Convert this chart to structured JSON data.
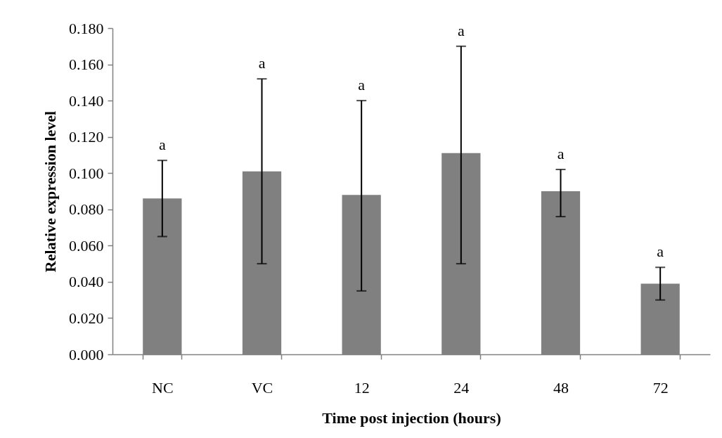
{
  "chart_data": {
    "type": "bar",
    "xlabel": "Time post injection (hours)",
    "ylabel": "Relative expression level",
    "categories": [
      "NC",
      "VC",
      "12",
      "24",
      "48",
      "72"
    ],
    "values": [
      0.086,
      0.101,
      0.088,
      0.111,
      0.09,
      0.039
    ],
    "errors": [
      [
        0.065,
        0.107
      ],
      [
        0.05,
        0.152
      ],
      [
        0.035,
        0.14
      ],
      [
        0.05,
        0.17
      ],
      [
        0.076,
        0.102
      ],
      [
        0.03,
        0.048
      ]
    ],
    "color": "#808080",
    "ylim": [
      0,
      0.18
    ],
    "yticks": [
      {
        "value": 0,
        "label": "0.000"
      },
      {
        "value": 0.02,
        "label": "0.020"
      },
      {
        "value": 0.04,
        "label": "0.040"
      },
      {
        "value": 0.06,
        "label": "0.060"
      },
      {
        "value": 0.08,
        "label": "0.080"
      },
      {
        "value": 0.1,
        "label": "0.100"
      },
      {
        "value": 0.12,
        "label": "0.120"
      },
      {
        "value": 0.14,
        "label": "0.140"
      },
      {
        "value": 0.16,
        "label": "0.160"
      },
      {
        "value": 0.18,
        "label": "0.180"
      }
    ],
    "grid": false,
    "annotations": [
      {
        "text": "a",
        "x": "NC",
        "y": 0.107
      },
      {
        "text": "a",
        "x": "VC",
        "y": 0.152
      },
      {
        "text": "a",
        "x": "12",
        "y": 0.14
      },
      {
        "text": "a",
        "x": "24",
        "y": 0.17
      },
      {
        "text": "a",
        "x": "48",
        "y": 0.102
      },
      {
        "text": "a",
        "x": "72",
        "y": 0.048
      }
    ]
  }
}
